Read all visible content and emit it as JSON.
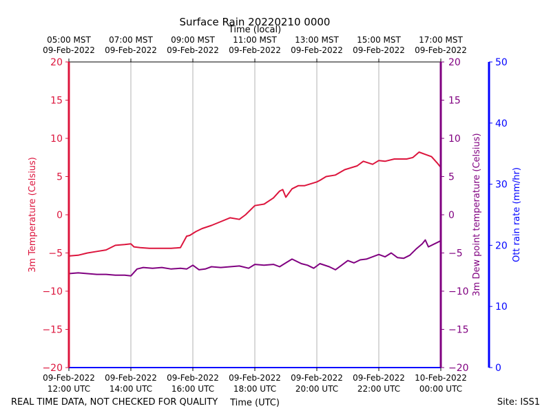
{
  "chart_data": {
    "type": "line",
    "title": "Surface Rain 20220210 0000",
    "top_axis_label": "Time (local)",
    "xlabel": "Time (UTC)",
    "xlim_utc_hours": [
      12,
      24
    ],
    "x_ticks": [
      {
        "hour": 12,
        "utc_date": "09-Feb-2022",
        "utc_time": "12:00 UTC",
        "local_time": "05:00 MST",
        "local_date": "09-Feb-2022"
      },
      {
        "hour": 14,
        "utc_date": "09-Feb-2022",
        "utc_time": "14:00 UTC",
        "local_time": "07:00 MST",
        "local_date": "09-Feb-2022"
      },
      {
        "hour": 16,
        "utc_date": "09-Feb-2022",
        "utc_time": "16:00 UTC",
        "local_time": "09:00 MST",
        "local_date": "09-Feb-2022"
      },
      {
        "hour": 18,
        "utc_date": "09-Feb-2022",
        "utc_time": "18:00 UTC",
        "local_time": "11:00 MST",
        "local_date": "09-Feb-2022"
      },
      {
        "hour": 20,
        "utc_date": "09-Feb-2022",
        "utc_time": "20:00 UTC",
        "local_time": "13:00 MST",
        "local_date": "09-Feb-2022"
      },
      {
        "hour": 22,
        "utc_date": "09-Feb-2022",
        "utc_time": "22:00 UTC",
        "local_time": "15:00 MST",
        "local_date": "09-Feb-2022"
      },
      {
        "hour": 24,
        "utc_date": "10-Feb-2022",
        "utc_time": "00:00 UTC",
        "local_time": "17:00 MST",
        "local_date": "09-Feb-2022"
      }
    ],
    "grid": "vertical",
    "y_left": {
      "label": "3m Temperature (Celsius)",
      "ylim": [
        -20,
        20
      ],
      "ticks": [
        -20,
        -15,
        -10,
        -5,
        0,
        5,
        10,
        15,
        20
      ],
      "color": "#dc143c"
    },
    "y_right1": {
      "label": "3m Dew point temperature (Celsius)",
      "ylim": [
        -20,
        20
      ],
      "ticks": [
        -20,
        -15,
        -10,
        -5,
        0,
        5,
        10,
        15,
        20
      ],
      "color": "#800080"
    },
    "y_right2": {
      "label": "Ott rain rate (mm/hr)",
      "ylim": [
        0,
        50
      ],
      "ticks": [
        0,
        10,
        20,
        30,
        40,
        50
      ],
      "color": "#0000ff"
    },
    "series": [
      {
        "name": "3m Temperature",
        "color": "#dc143c",
        "axis": "y_left",
        "x": [
          12.0,
          12.3,
          12.6,
          12.9,
          13.2,
          13.5,
          13.8,
          14.0,
          14.1,
          14.3,
          14.6,
          15.0,
          15.3,
          15.6,
          15.8,
          15.9,
          16.1,
          16.3,
          16.6,
          16.9,
          17.2,
          17.5,
          17.7,
          18.0,
          18.3,
          18.6,
          18.8,
          18.9,
          19.0,
          19.2,
          19.4,
          19.6,
          20.0,
          20.1,
          20.3,
          20.6,
          20.9,
          21.3,
          21.5,
          21.8,
          22.0,
          22.2,
          22.5,
          22.7,
          22.9,
          23.1,
          23.3,
          23.5,
          23.7,
          23.9,
          24.0
        ],
        "values": [
          -5.4,
          -5.3,
          -5.0,
          -4.8,
          -4.6,
          -4.0,
          -3.9,
          -3.8,
          -4.2,
          -4.3,
          -4.4,
          -4.4,
          -4.4,
          -4.3,
          -2.8,
          -2.7,
          -2.2,
          -1.8,
          -1.4,
          -0.9,
          -0.4,
          -0.6,
          0.0,
          1.2,
          1.4,
          2.2,
          3.1,
          3.3,
          2.3,
          3.4,
          3.8,
          3.8,
          4.3,
          4.5,
          5.0,
          5.2,
          5.9,
          6.4,
          7.0,
          6.6,
          7.1,
          7.0,
          7.3,
          7.3,
          7.3,
          7.5,
          8.2,
          7.9,
          7.6,
          6.7,
          6.2
        ]
      },
      {
        "name": "3m Dew point temperature",
        "color": "#800080",
        "axis": "y_right1",
        "x": [
          12.0,
          12.3,
          12.6,
          12.9,
          13.2,
          13.5,
          13.8,
          14.0,
          14.2,
          14.4,
          14.7,
          15.0,
          15.3,
          15.6,
          15.8,
          16.0,
          16.2,
          16.4,
          16.6,
          16.9,
          17.2,
          17.5,
          17.8,
          18.0,
          18.3,
          18.6,
          18.8,
          19.0,
          19.2,
          19.5,
          19.7,
          19.9,
          20.1,
          20.4,
          20.6,
          20.8,
          21.0,
          21.2,
          21.4,
          21.6,
          21.8,
          22.0,
          22.2,
          22.4,
          22.6,
          22.8,
          23.0,
          23.2,
          23.4,
          23.5,
          23.6,
          23.8,
          24.0
        ],
        "values": [
          -7.7,
          -7.6,
          -7.7,
          -7.8,
          -7.8,
          -7.9,
          -7.9,
          -8.0,
          -7.1,
          -6.9,
          -7.0,
          -6.9,
          -7.1,
          -7.0,
          -7.1,
          -6.6,
          -7.2,
          -7.1,
          -6.8,
          -6.9,
          -6.8,
          -6.7,
          -7.0,
          -6.5,
          -6.6,
          -6.5,
          -6.8,
          -6.3,
          -5.8,
          -6.4,
          -6.6,
          -7.0,
          -6.4,
          -6.8,
          -7.2,
          -6.6,
          -6.0,
          -6.3,
          -5.9,
          -5.8,
          -5.5,
          -5.2,
          -5.5,
          -5.0,
          -5.6,
          -5.7,
          -5.3,
          -4.5,
          -3.8,
          -3.3,
          -4.2,
          -3.8,
          -3.4
        ]
      }
    ],
    "footer_left": "REAL TIME DATA, NOT CHECKED FOR QUALITY",
    "footer_right": "Site: ISS1"
  }
}
